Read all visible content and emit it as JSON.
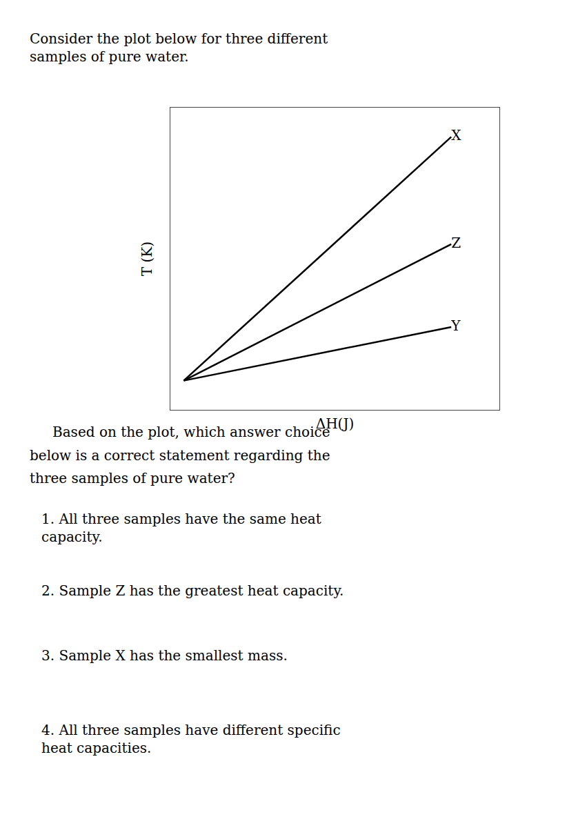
{
  "chart_data": {
    "type": "line",
    "xlabel": "ΔH(J)",
    "ylabel": "T (K)",
    "series": [
      {
        "name": "X",
        "color": "#000000",
        "x": [
          0,
          1.0
        ],
        "values": [
          0,
          1.0
        ]
      },
      {
        "name": "Z",
        "color": "#000000",
        "x": [
          0,
          1.0
        ],
        "values": [
          0,
          0.56
        ]
      },
      {
        "name": "Y",
        "color": "#000000",
        "x": [
          0,
          1.0
        ],
        "values": [
          0,
          0.22
        ]
      }
    ],
    "xlim": [
      -0.05,
      1.18
    ],
    "ylim": [
      -0.12,
      1.12
    ],
    "xticks": [],
    "yticks": [],
    "tick_labels": false,
    "grid": false,
    "annotations": [
      "Consider the plot below for three different",
      "samples of pure water.",
      "Based on the plot, which answer choice",
      "below is a correct statement regarding the",
      "three samples of pure water?",
      "1. All three samples have the same heat\ncapacity.",
      "2. Sample Z has the greatest heat capacity.",
      "3. Sample X has the smallest mass.",
      "4. All three samples have different specific\nheat capacities."
    ]
  }
}
